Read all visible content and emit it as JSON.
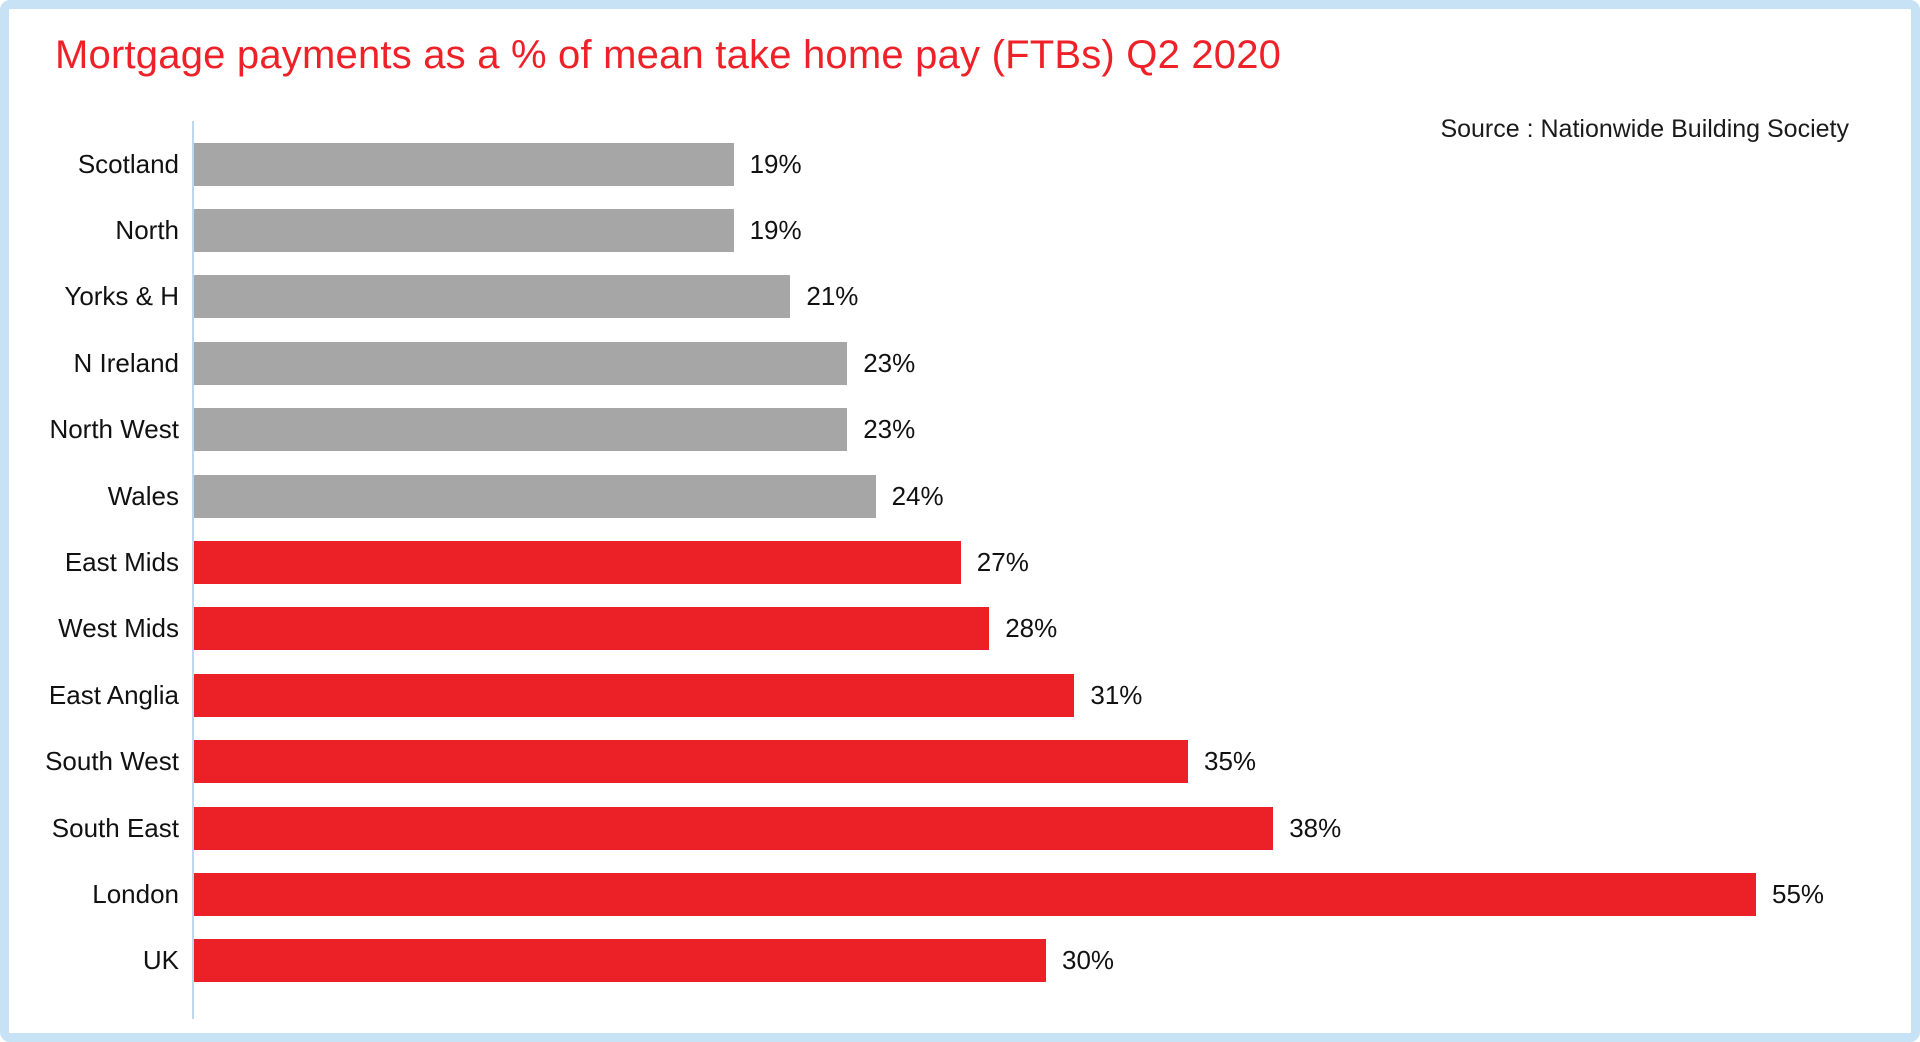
{
  "title": "Mortgage payments as a % of mean take home pay (FTBs) Q2 2020",
  "source": "Source : Nationwide Building Society",
  "colors": {
    "title_red": "#ee2128",
    "bar_red": "#ec2127",
    "bar_gray": "#a6a6a6",
    "axis_blue": "#bdd7ee",
    "frame_blue": "#c7e1f5",
    "text_black": "#111111"
  },
  "chart_data": {
    "type": "bar",
    "orientation": "horizontal",
    "title": "Mortgage payments as a % of mean take home pay (FTBs) Q2 2020",
    "xlabel": "",
    "ylabel": "",
    "xlim": [
      0,
      60
    ],
    "grid": false,
    "legend": false,
    "categories": [
      "Scotland",
      "North",
      "Yorks & H",
      "N Ireland",
      "North West",
      "Wales",
      "East Mids",
      "West Mids",
      "East Anglia",
      "South West",
      "South East",
      "London",
      "UK"
    ],
    "values": [
      19,
      19,
      21,
      23,
      23,
      24,
      27,
      28,
      31,
      35,
      38,
      55,
      30
    ],
    "value_labels": [
      "19%",
      "19%",
      "21%",
      "23%",
      "23%",
      "24%",
      "27%",
      "28%",
      "31%",
      "35%",
      "38%",
      "55%",
      "30%"
    ],
    "bar_color_keys": [
      "gray",
      "gray",
      "gray",
      "gray",
      "gray",
      "gray",
      "red",
      "red",
      "red",
      "red",
      "red",
      "red",
      "red"
    ]
  }
}
